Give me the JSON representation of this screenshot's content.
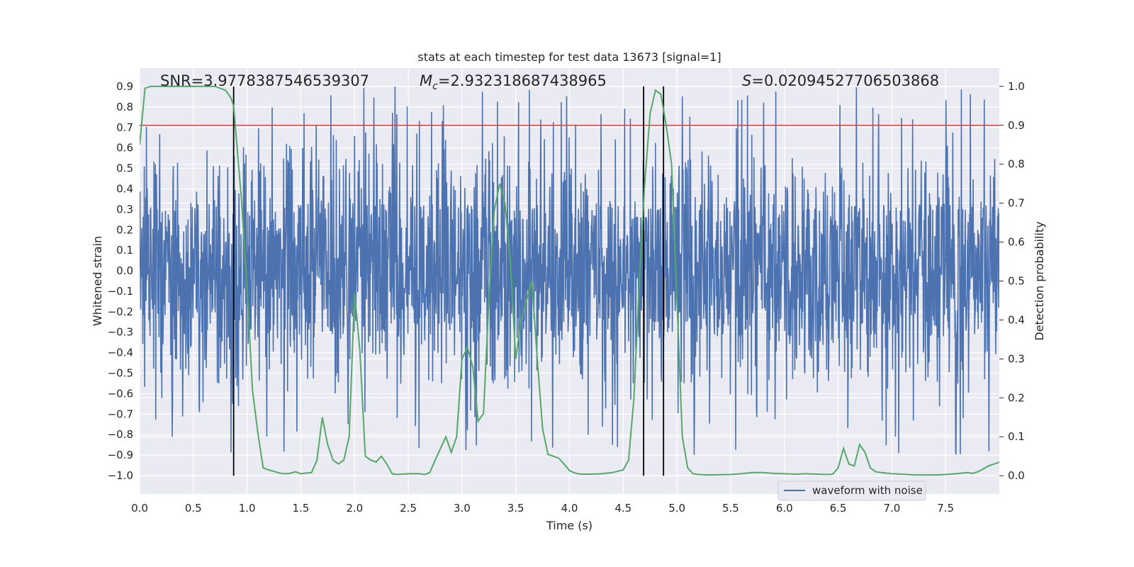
{
  "chart_data": {
    "type": "line",
    "title": "stats at each timestep for test data 13673 [signal=1]",
    "xlabel": "Time (s)",
    "ylabel": "Whitened strain",
    "y2label": "Detection probability",
    "xlim": [
      0.0,
      8.0
    ],
    "ylim": [
      -1.09,
      0.99
    ],
    "y2lim": [
      -0.047,
      1.047
    ],
    "xticks": [
      0.0,
      0.5,
      1.0,
      1.5,
      2.0,
      2.5,
      3.0,
      3.5,
      4.0,
      4.5,
      5.0,
      5.5,
      6.0,
      6.5,
      7.0,
      7.5
    ],
    "yticks": [
      0.9,
      0.8,
      0.7,
      0.6,
      0.5,
      0.4,
      0.3,
      0.2,
      0.1,
      0.0,
      -0.1,
      -0.2,
      -0.3,
      -0.4,
      -0.5,
      -0.6,
      -0.7,
      -0.8,
      -0.9,
      -1.0
    ],
    "y2ticks": [
      1.0,
      0.9,
      0.8,
      0.7,
      0.6,
      0.5,
      0.4,
      0.3,
      0.2,
      0.1,
      0.0
    ],
    "grid": true,
    "legend": {
      "placement": "lower-right",
      "entries": [
        "waveform with noise"
      ]
    },
    "annotations": {
      "snr": "SNR=3.9778387546539307",
      "mc_symbol": "M",
      "mc_sub": "c",
      "mc_value": "=2.932318687438965",
      "s_symbol": "S",
      "s_value": "=0.02094527706503868"
    },
    "threshold": {
      "axis": "y2",
      "value": 0.9,
      "color": "#c44e52"
    },
    "vlines": [
      0.875,
      4.69,
      4.875
    ],
    "series": [
      {
        "name": "waveform with noise",
        "axis": "y",
        "color": "#4c72b0",
        "description_of_values": "noisy whitened strain, dense oscillation between about -0.6 and 0.6 with spikes to ±0.9",
        "core_amplitude": 0.33,
        "peak_amplitude": 0.9,
        "t_end": 8.0
      },
      {
        "name": "",
        "axis": "y2",
        "color": "#55a868",
        "x": [
          0.0,
          0.05,
          0.1,
          0.2,
          0.3,
          0.4,
          0.5,
          0.6,
          0.7,
          0.8,
          0.85,
          0.875,
          0.95,
          1.0,
          1.05,
          1.1,
          1.15,
          1.2,
          1.3,
          1.35,
          1.4,
          1.45,
          1.5,
          1.55,
          1.6,
          1.65,
          1.7,
          1.75,
          1.8,
          1.85,
          1.9,
          1.95,
          2.0,
          2.05,
          2.1,
          2.15,
          2.2,
          2.25,
          2.3,
          2.35,
          2.4,
          2.5,
          2.6,
          2.65,
          2.7,
          2.75,
          2.8,
          2.85,
          2.9,
          2.95,
          3.0,
          3.05,
          3.1,
          3.15,
          3.2,
          3.25,
          3.3,
          3.35,
          3.4,
          3.45,
          3.5,
          3.55,
          3.6,
          3.65,
          3.7,
          3.75,
          3.8,
          3.85,
          3.9,
          3.95,
          4.0,
          4.05,
          4.1,
          4.2,
          4.3,
          4.4,
          4.5,
          4.55,
          4.6,
          4.65,
          4.7,
          4.75,
          4.8,
          4.85,
          4.9,
          4.95,
          5.0,
          5.05,
          5.1,
          5.15,
          5.2,
          5.3,
          5.5,
          5.6,
          5.7,
          5.8,
          5.9,
          6.0,
          6.1,
          6.2,
          6.3,
          6.4,
          6.45,
          6.5,
          6.55,
          6.6,
          6.65,
          6.7,
          6.75,
          6.8,
          6.85,
          6.9,
          7.0,
          7.1,
          7.2,
          7.3,
          7.4,
          7.5,
          7.6,
          7.7,
          7.75,
          7.8,
          7.9,
          8.0
        ],
        "y": [
          0.85,
          0.995,
          1.0,
          1.0,
          1.0,
          1.0,
          1.0,
          1.0,
          1.0,
          0.99,
          0.97,
          0.95,
          0.7,
          0.48,
          0.22,
          0.11,
          0.02,
          0.015,
          0.007,
          0.005,
          0.006,
          0.01,
          0.005,
          0.007,
          0.008,
          0.04,
          0.15,
          0.08,
          0.04,
          0.03,
          0.04,
          0.1,
          0.47,
          0.32,
          0.05,
          0.04,
          0.035,
          0.05,
          0.03,
          0.005,
          0.003,
          0.005,
          0.005,
          0.003,
          0.008,
          0.04,
          0.07,
          0.1,
          0.06,
          0.1,
          0.3,
          0.33,
          0.28,
          0.14,
          0.16,
          0.45,
          0.68,
          0.75,
          0.7,
          0.55,
          0.3,
          0.4,
          0.45,
          0.5,
          0.3,
          0.12,
          0.055,
          0.05,
          0.045,
          0.03,
          0.013,
          0.007,
          0.004,
          0.004,
          0.005,
          0.008,
          0.015,
          0.04,
          0.2,
          0.5,
          0.75,
          0.93,
          0.99,
          0.98,
          0.9,
          0.8,
          0.45,
          0.1,
          0.02,
          0.005,
          0.003,
          0.002,
          0.003,
          0.005,
          0.008,
          0.008,
          0.006,
          0.005,
          0.004,
          0.005,
          0.004,
          0.003,
          0.004,
          0.02,
          0.07,
          0.03,
          0.025,
          0.08,
          0.06,
          0.02,
          0.01,
          0.008,
          0.005,
          0.004,
          0.002,
          0.002,
          0.002,
          0.003,
          0.005,
          0.008,
          0.006,
          0.01,
          0.025,
          0.035
        ]
      }
    ]
  }
}
